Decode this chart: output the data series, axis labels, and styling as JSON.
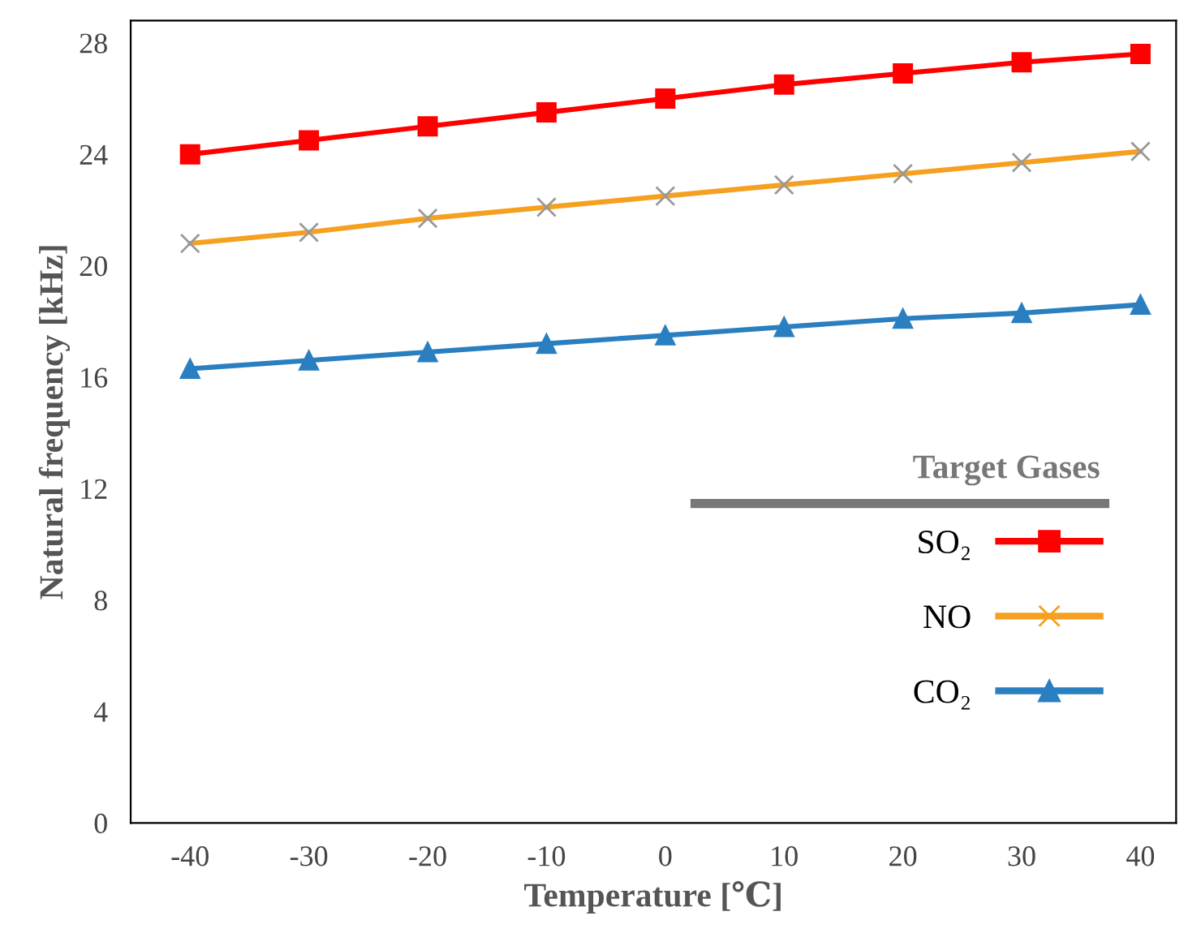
{
  "chart_data": {
    "type": "line",
    "xlabel": "Temperature [℃]",
    "ylabel": "Natural frequency [kHz]",
    "legend_title": "Target Gases",
    "x": [
      -40,
      -30,
      -20,
      -10,
      0,
      10,
      20,
      30,
      40
    ],
    "xlim": [
      -45,
      43
    ],
    "xticks": [
      -40,
      -30,
      -20,
      -10,
      0,
      10,
      20,
      30,
      40
    ],
    "ylim": [
      0,
      28.8
    ],
    "yticks": [
      0,
      4,
      8,
      12,
      16,
      20,
      24,
      28
    ],
    "grid": false,
    "legend": "center right",
    "line_style": "solid",
    "series": [
      {
        "name": "SO₂",
        "color": "#ff0000",
        "marker": "square",
        "values": [
          24.0,
          24.5,
          25.0,
          25.5,
          26.0,
          26.5,
          26.9,
          27.3,
          27.6
        ]
      },
      {
        "name": "NO",
        "color": "#f5a020",
        "marker": "cross",
        "values": [
          20.8,
          21.2,
          21.7,
          22.1,
          22.5,
          22.9,
          23.3,
          23.7,
          24.1
        ]
      },
      {
        "name": "CO₂",
        "color": "#2a7fc0",
        "marker": "triangle",
        "values": [
          16.3,
          16.6,
          16.9,
          17.2,
          17.5,
          17.8,
          18.1,
          18.3,
          18.6
        ]
      }
    ]
  }
}
